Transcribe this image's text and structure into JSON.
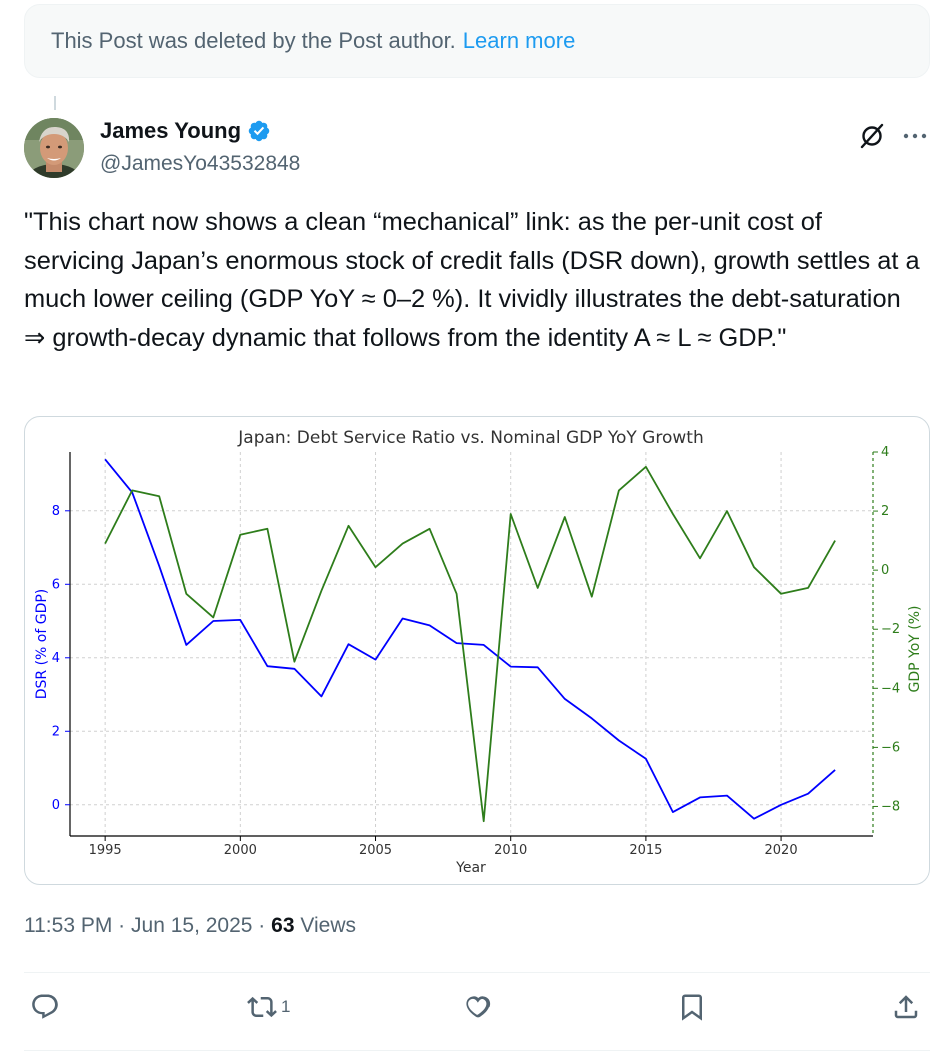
{
  "deleted_notice": {
    "text": "This Post was deleted by the Post author.",
    "link": "Learn more"
  },
  "author": {
    "name": "James Young",
    "handle": "@JamesYo43532848",
    "verified": true
  },
  "tweet": {
    "text": "\"This chart now shows a clean “mechanical” link: as the per-unit cost of servicing Japan’s enormous stock of credit falls (DSR down), growth settles at a much lower ceiling (GDP YoY ≈ 0–2 %). It vividly illustrates the debt-saturation ⇒ growth-decay dynamic that follows from the identity A ≈ L ≈ GDP.\""
  },
  "meta": {
    "time": "11:53 PM",
    "dot1": "·",
    "date": "Jun 15, 2025",
    "dot2": "·",
    "views_count": "63",
    "views_label": "Views"
  },
  "actions": {
    "reply_count": "",
    "repost_count": "1",
    "like_count": "",
    "bookmark_count": ""
  },
  "colors": {
    "dsr": "#0000ff",
    "gdp": "#2e7d1b",
    "link": "#1d9bf0"
  },
  "icons": [
    "verified-badge-icon",
    "grok-icon",
    "more-icon",
    "reply-icon",
    "repost-icon",
    "like-icon",
    "bookmark-icon",
    "share-icon"
  ],
  "chart_data": {
    "type": "line",
    "title": "Japan: Debt Service Ratio vs. Nominal GDP YoY Growth",
    "xlabel": "Year",
    "ylabel": "DSR (% of GDP)",
    "y2label": "GDP YoY (%)",
    "xlim": [
      1993.7,
      2023.4
    ],
    "ylim": [
      -0.85,
      9.6
    ],
    "y2lim": [
      -9.0,
      4.0
    ],
    "x_ticks": [
      1995,
      2000,
      2005,
      2010,
      2015,
      2020
    ],
    "y_ticks": [
      0,
      2,
      4,
      6,
      8
    ],
    "y2_ticks": [
      -8,
      -6,
      -4,
      -2,
      0,
      2,
      4
    ],
    "y2_tick_labels": [
      "−8",
      "−6",
      "−4",
      "−2",
      "0",
      "2",
      "4"
    ],
    "grid": true,
    "x": [
      1995,
      1996,
      1997,
      1998,
      1999,
      2000,
      2001,
      2002,
      2003,
      2004,
      2005,
      2006,
      2007,
      2008,
      2009,
      2010,
      2011,
      2012,
      2013,
      2014,
      2015,
      2016,
      2017,
      2018,
      2019,
      2020,
      2021,
      2022
    ],
    "series": [
      {
        "axis": "left",
        "values": [
          9.4,
          8.5,
          6.5,
          4.35,
          5.0,
          5.03,
          3.77,
          3.7,
          2.95,
          4.37,
          3.95,
          5.07,
          4.88,
          4.4,
          4.35,
          3.76,
          3.74,
          2.88,
          2.35,
          1.75,
          1.25,
          -0.2,
          0.2,
          0.25,
          -0.38,
          0.0,
          0.3,
          0.95
        ]
      },
      {
        "axis": "right",
        "values": [
          0.9,
          2.7,
          2.5,
          -0.8,
          -1.6,
          1.2,
          1.4,
          -3.1,
          -0.7,
          1.5,
          0.1,
          0.9,
          1.4,
          -0.8,
          -8.5,
          1.9,
          -0.6,
          1.8,
          -0.9,
          2.7,
          3.5,
          1.9,
          0.4,
          2.0,
          0.1,
          -0.8,
          -0.6,
          1.0
        ]
      }
    ]
  }
}
